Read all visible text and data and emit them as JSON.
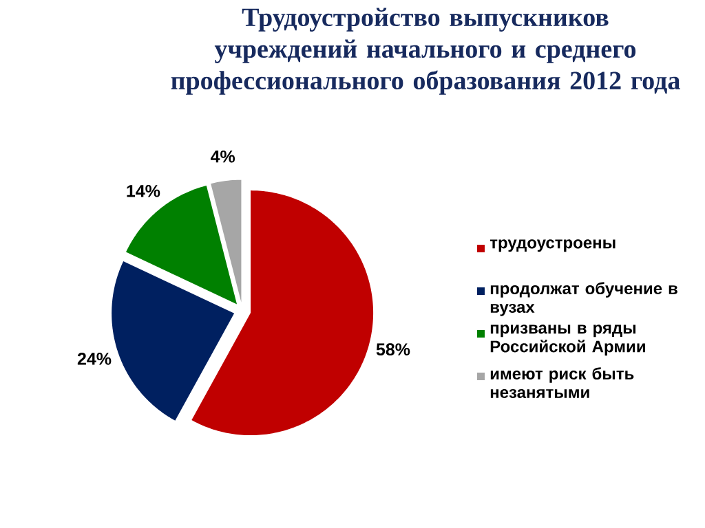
{
  "chart_data": {
    "type": "pie",
    "title": "Трудоустройство выпускников учреждений начального и среднего профессионального образования 2012 года",
    "categories": [
      "трудоустроены",
      "продолжат обучение в вузах",
      "призваны в ряды Российской Армии",
      "имеют риск быть незанятыми"
    ],
    "values": [
      58,
      24,
      14,
      4
    ],
    "colors": [
      "#c00000",
      "#002060",
      "#008000",
      "#a6a6a6"
    ],
    "value_labels": [
      "58%",
      "24%",
      "14%",
      "4%"
    ],
    "legend": "right"
  }
}
